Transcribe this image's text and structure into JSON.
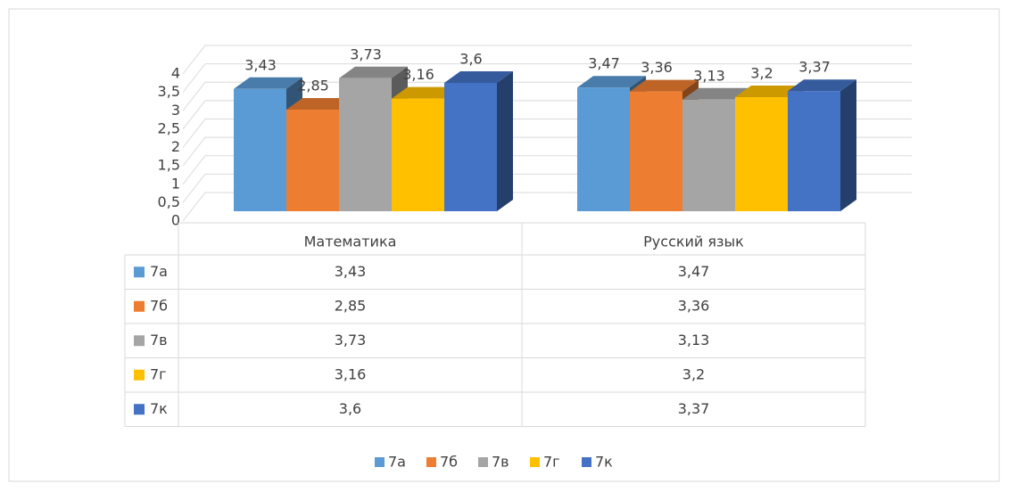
{
  "chart_data": {
    "type": "bar3d",
    "categories": [
      "Математика",
      "Русский язык"
    ],
    "series": [
      {
        "name": "7а",
        "color": "#5b9bd5",
        "values": [
          3.43,
          3.47
        ],
        "value_labels": [
          "3,43",
          "3,47"
        ]
      },
      {
        "name": "7б",
        "color": "#ed7d31",
        "values": [
          2.85,
          3.36
        ],
        "value_labels": [
          "2,85",
          "3,36"
        ]
      },
      {
        "name": "7в",
        "color": "#a5a5a5",
        "values": [
          3.73,
          3.13
        ],
        "value_labels": [
          "3,73",
          "3,13"
        ]
      },
      {
        "name": "7г",
        "color": "#ffc000",
        "values": [
          3.16,
          3.2
        ],
        "value_labels": [
          "3,16",
          "3,2"
        ]
      },
      {
        "name": "7к",
        "color": "#4472c4",
        "values": [
          3.6,
          3.37
        ],
        "value_labels": [
          "3,6",
          "3,37"
        ]
      }
    ],
    "ylim": [
      0,
      4
    ],
    "yticks": [
      0,
      {
        "value": 0.5,
        "label": "0,5"
      },
      1,
      {
        "value": 1.5,
        "label": "1,5"
      },
      2,
      {
        "value": 2.5,
        "label": "2,5"
      },
      3,
      {
        "value": 3.5,
        "label": "3,5"
      },
      4
    ],
    "grid": true,
    "data_table": true,
    "legend": "bottom"
  }
}
